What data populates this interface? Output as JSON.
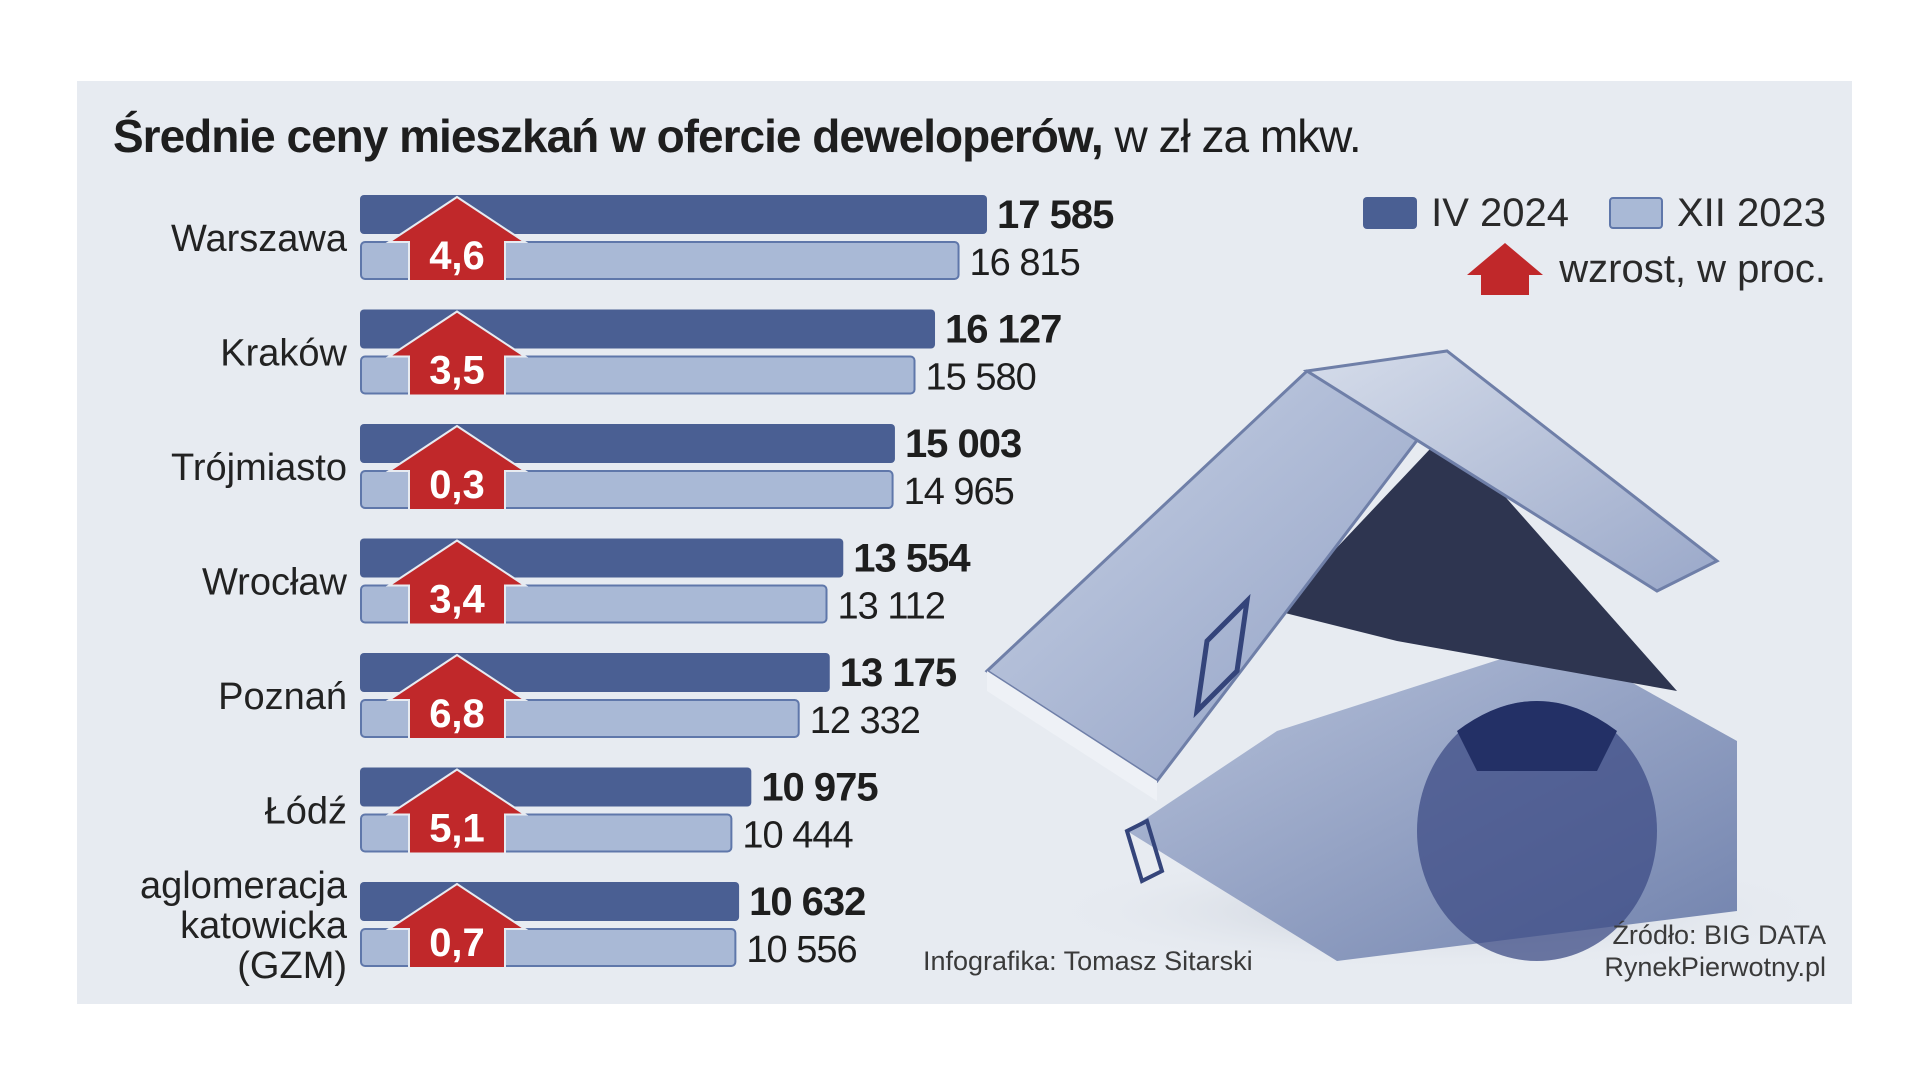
{
  "title": {
    "bold": "Średnie ceny  mieszkań w ofercie deweloperów,",
    "rest": " w zł za mkw."
  },
  "legend": {
    "new": "IV 2024",
    "old": "XII 2023",
    "growth": "wzrost, w proc."
  },
  "credit": "Infografika: Tomasz Sitarski",
  "source": {
    "line1": "Źródło: BIG DATA",
    "line2": "RynekPierwotny.pl"
  },
  "colors": {
    "new_bar": "#4a5f93",
    "old_bar": "#a9b9d6",
    "arrow": "#c0282a",
    "panel": "#e7ebf1"
  },
  "chart_data": {
    "type": "bar",
    "orientation": "horizontal",
    "categories": [
      [
        "Warszawa"
      ],
      [
        "Kraków"
      ],
      [
        "Trójmiasto"
      ],
      [
        "Wrocław"
      ],
      [
        "Poznań"
      ],
      [
        "Łódź"
      ],
      [
        "aglomeracja",
        "katowicka",
        "(GZM)"
      ]
    ],
    "series": [
      {
        "name": "IV 2024",
        "values": [
          17585,
          16127,
          15003,
          13554,
          13175,
          10975,
          10632
        ],
        "labels": [
          "17 585",
          "16 127",
          "15 003",
          "13 554",
          "13 175",
          "10 975",
          "10 632"
        ]
      },
      {
        "name": "XII 2023",
        "values": [
          16815,
          15580,
          14965,
          13112,
          12332,
          10444,
          10556
        ],
        "labels": [
          "16 815",
          "15 580",
          "14 965",
          "13 112",
          "12 332",
          "10 444",
          "10 556"
        ]
      }
    ],
    "growth_pct": [
      "4,6",
      "3,5",
      "0,3",
      "3,4",
      "6,8",
      "5,1",
      "0,7"
    ],
    "xlim": [
      0,
      17585
    ],
    "grid": false,
    "legend_position": "top-right"
  }
}
